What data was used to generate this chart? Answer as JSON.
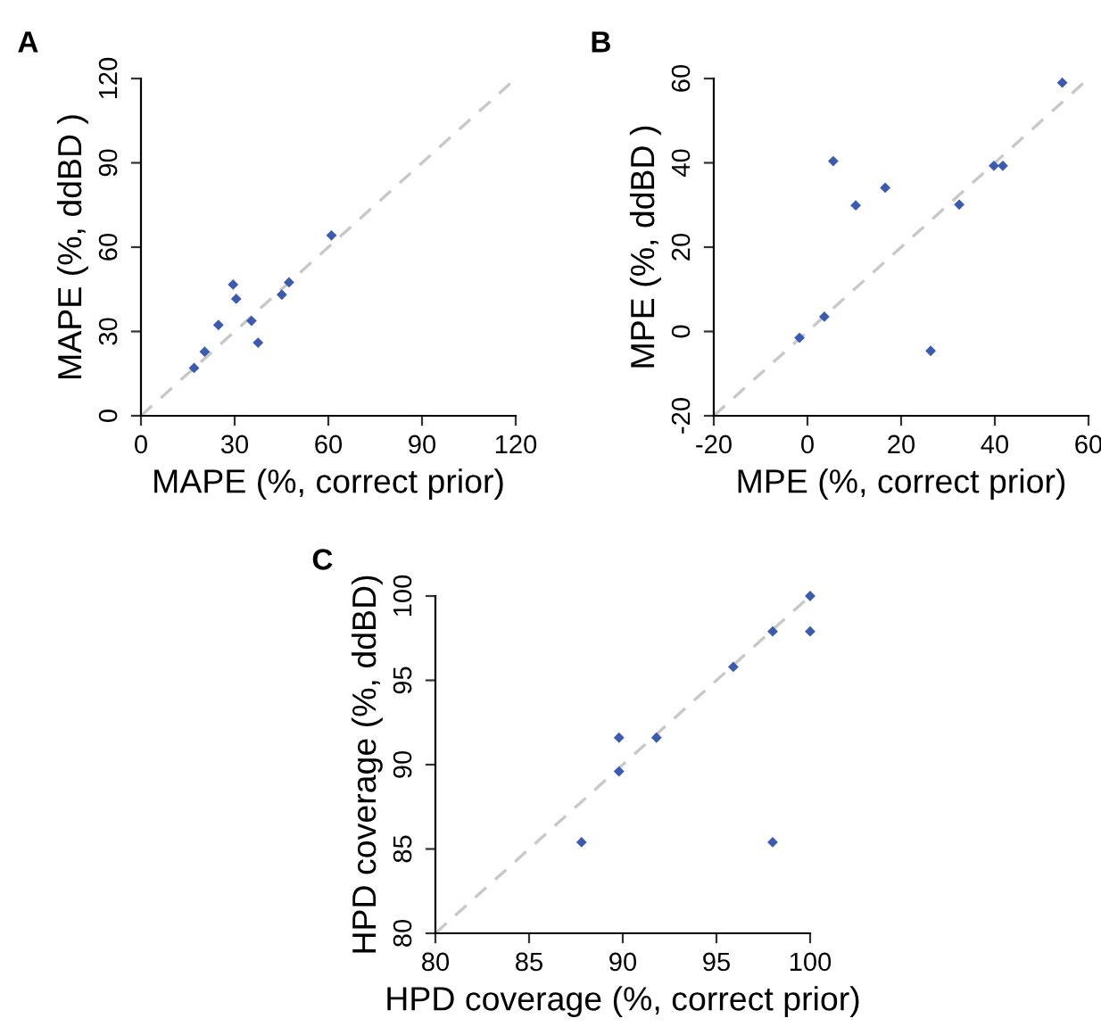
{
  "chart_data": [
    {
      "type": "scatter",
      "title": "A",
      "xlabel": "MAPE (%, correct prior)",
      "ylabel": "MAPE (%, ddBD )",
      "xlim": [
        0,
        120
      ],
      "ylim": [
        0,
        120
      ],
      "xticks": [
        0,
        30,
        60,
        90,
        120
      ],
      "yticks": [
        0,
        30,
        60,
        90,
        120
      ],
      "grid": false,
      "series": [
        {
          "marker": "diamond",
          "color": "#3a5bb0",
          "x": [
            17,
            20.4,
            24.8,
            29.5,
            30.5,
            35.4,
            37.5,
            45.1,
            47.4,
            61
          ],
          "values": [
            17,
            22.8,
            32.3,
            46.7,
            41.6,
            33.8,
            26,
            43.1,
            47.5,
            64.2
          ]
        },
        {
          "type": "line",
          "line_style": "dashed",
          "color": "#c8c8c8",
          "x": [
            0,
            120
          ],
          "values": [
            0,
            120
          ]
        }
      ]
    },
    {
      "type": "scatter",
      "title": "B",
      "xlabel": "MPE (%, correct prior)",
      "ylabel": "MPE (%, ddBD )",
      "xlim": [
        -20,
        60
      ],
      "ylim": [
        -20,
        60
      ],
      "xticks": [
        -20,
        0,
        20,
        40,
        60
      ],
      "yticks": [
        -20,
        0,
        20,
        40,
        60
      ],
      "grid": false,
      "series": [
        {
          "marker": "diamond",
          "color": "#3a5bb0",
          "x": [
            -1.7,
            3.6,
            5.5,
            10.3,
            16.6,
            26.3,
            32.4,
            39.8,
            41.7,
            54.4
          ],
          "values": [
            -1.5,
            3.5,
            40.4,
            29.9,
            34.1,
            -4.6,
            30.1,
            39.3,
            39.3,
            59
          ]
        },
        {
          "type": "line",
          "line_style": "dashed",
          "color": "#c8c8c8",
          "x": [
            -20,
            60
          ],
          "values": [
            -20,
            60
          ]
        }
      ]
    },
    {
      "type": "scatter",
      "title": "C",
      "xlabel": "HPD coverage (%, correct prior)",
      "ylabel": "HPD coverage (%, ddBD)",
      "xlim": [
        80,
        100
      ],
      "ylim": [
        80,
        100
      ],
      "xticks": [
        80,
        85,
        90,
        95,
        100
      ],
      "yticks": [
        80,
        85,
        90,
        95,
        100
      ],
      "grid": false,
      "series": [
        {
          "marker": "diamond",
          "color": "#3a5bb0",
          "x": [
            87.8,
            89.8,
            89.8,
            91.8,
            95.9,
            98,
            98,
            100,
            100
          ],
          "values": [
            85.4,
            91.6,
            89.6,
            91.6,
            95.8,
            97.9,
            85.4,
            100,
            97.9
          ]
        },
        {
          "type": "line",
          "line_style": "dashed",
          "color": "#c8c8c8",
          "x": [
            80,
            100
          ],
          "values": [
            80,
            100
          ]
        }
      ]
    }
  ]
}
